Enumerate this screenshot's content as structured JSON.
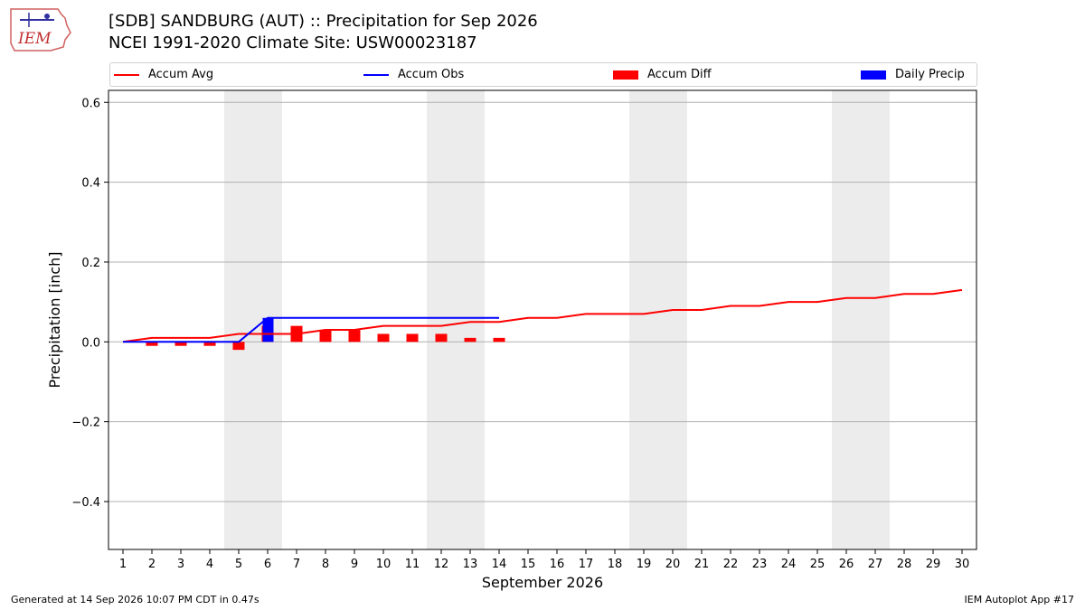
{
  "header": {
    "title_line1": "[SDB] SANDBURG (AUT) :: Precipitation for Sep 2026",
    "title_line2": "NCEI 1991-2020 Climate Site: USW00023187",
    "logo_text": "IEM"
  },
  "footer": {
    "left": "Generated at 14 Sep 2026 10:07 PM CDT in 0.47s",
    "right": "IEM Autoplot App #17"
  },
  "colors": {
    "avg": "#ff0000",
    "obs": "#0000ff",
    "diff": "#ff0000",
    "daily": "#0000ff",
    "weekend_band": "#ececec",
    "grid": "#b0b0b0"
  },
  "chart_data": {
    "type": "line",
    "title": "[SDB] SANDBURG (AUT) :: Precipitation for Sep 2026",
    "subtitle": "NCEI 1991-2020 Climate Site: USW00023187",
    "xlabel": "September 2026",
    "ylabel": "Precipitation [inch]",
    "xlim": [
      0.5,
      30.5
    ],
    "ylim": [
      -0.52,
      0.63
    ],
    "yticks": [
      -0.4,
      -0.2,
      0.0,
      0.2,
      0.4,
      0.6
    ],
    "ytick_labels": [
      "−0.4",
      "−0.2",
      "0.0",
      "0.2",
      "0.4",
      "0.6"
    ],
    "x": [
      1,
      2,
      3,
      4,
      5,
      6,
      7,
      8,
      9,
      10,
      11,
      12,
      13,
      14,
      15,
      16,
      17,
      18,
      19,
      20,
      21,
      22,
      23,
      24,
      25,
      26,
      27,
      28,
      29,
      30
    ],
    "x_tick_labels": [
      "1",
      "2",
      "3",
      "4",
      "5",
      "6",
      "7",
      "8",
      "9",
      "10",
      "11",
      "12",
      "13",
      "14",
      "15",
      "16",
      "17",
      "18",
      "19",
      "20",
      "21",
      "22",
      "23",
      "24",
      "25",
      "26",
      "27",
      "28",
      "29",
      "30"
    ],
    "legend_position": "top",
    "grid": "horizontal",
    "weekend_bands": [
      [
        5,
        6
      ],
      [
        12,
        13
      ],
      [
        19,
        20
      ],
      [
        26,
        27
      ]
    ],
    "series": [
      {
        "name": "Accum Avg",
        "kind": "line",
        "x": [
          1,
          2,
          3,
          4,
          5,
          6,
          7,
          8,
          9,
          10,
          11,
          12,
          13,
          14,
          15,
          16,
          17,
          18,
          19,
          20,
          21,
          22,
          23,
          24,
          25,
          26,
          27,
          28,
          29,
          30
        ],
        "values": [
          0.0,
          0.01,
          0.01,
          0.01,
          0.02,
          0.02,
          0.02,
          0.03,
          0.03,
          0.04,
          0.04,
          0.04,
          0.05,
          0.05,
          0.06,
          0.06,
          0.07,
          0.07,
          0.07,
          0.08,
          0.08,
          0.09,
          0.09,
          0.1,
          0.1,
          0.11,
          0.11,
          0.12,
          0.12,
          0.13
        ]
      },
      {
        "name": "Accum Obs",
        "kind": "line",
        "x": [
          1,
          2,
          3,
          4,
          5,
          6,
          7,
          8,
          9,
          10,
          11,
          12,
          13,
          14
        ],
        "values": [
          0.0,
          0.0,
          0.0,
          0.0,
          0.0,
          0.06,
          0.06,
          0.06,
          0.06,
          0.06,
          0.06,
          0.06,
          0.06,
          0.06
        ]
      },
      {
        "name": "Accum Diff",
        "kind": "bar",
        "x": [
          2,
          3,
          4,
          5,
          6,
          7,
          8,
          9,
          10,
          11,
          12,
          13,
          14
        ],
        "values": [
          -0.01,
          -0.01,
          -0.01,
          -0.02,
          0.04,
          0.04,
          0.03,
          0.03,
          0.02,
          0.02,
          0.02,
          0.01,
          0.01
        ]
      },
      {
        "name": "Daily Precip",
        "kind": "bar",
        "x": [
          6
        ],
        "values": [
          0.06
        ]
      }
    ]
  }
}
